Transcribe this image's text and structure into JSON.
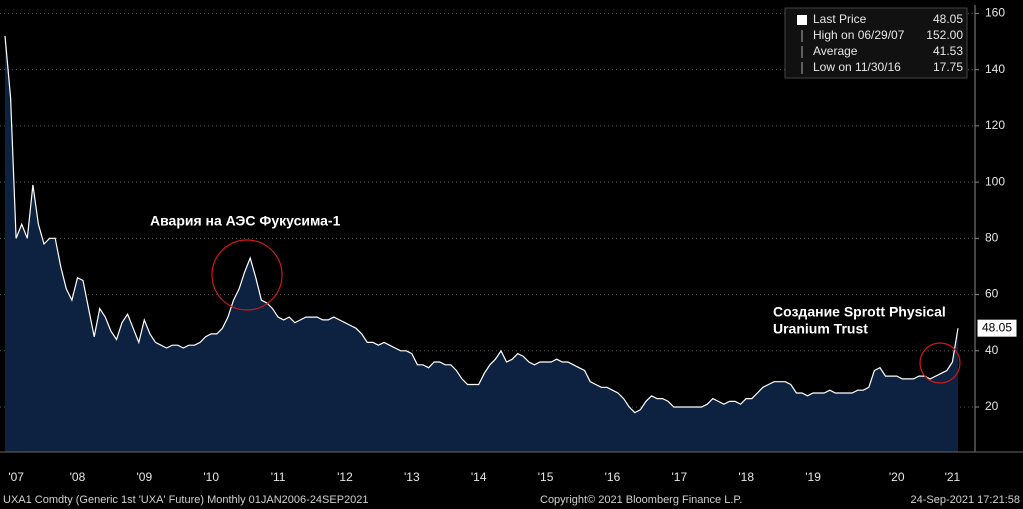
{
  "chart_data": {
    "type": "area",
    "series": [
      {
        "name": "Last Price",
        "color": "#ffffff",
        "fill": "#0d2240",
        "values": [
          152,
          130,
          80,
          85,
          80,
          99,
          85,
          78,
          80,
          80,
          70,
          62,
          58,
          66,
          65,
          55,
          45,
          55,
          52,
          47,
          44,
          50,
          53,
          48,
          43,
          51,
          46,
          43,
          42,
          41,
          42,
          42,
          41,
          42,
          42,
          43,
          45,
          46,
          46,
          48,
          52,
          58,
          62,
          68,
          73,
          66,
          58,
          57,
          55,
          52,
          51,
          52,
          50,
          51,
          52,
          52,
          52,
          51,
          51,
          52,
          51,
          50,
          49,
          48,
          46,
          43,
          43,
          42,
          43,
          42,
          41,
          40,
          40,
          39,
          35,
          35,
          34,
          36,
          36,
          35,
          35,
          33,
          30,
          28,
          28,
          28,
          32,
          35,
          37,
          40,
          36,
          37,
          39,
          38,
          36,
          35,
          36,
          36,
          36,
          37,
          36,
          36,
          35,
          34,
          33,
          29,
          28,
          27,
          27,
          26,
          25,
          23,
          20,
          18,
          19,
          22,
          24,
          23,
          23,
          22,
          20,
          20,
          20,
          20,
          20,
          20,
          21,
          23,
          22,
          21,
          22,
          22,
          21,
          23,
          23,
          25,
          27,
          28,
          29,
          29,
          29,
          28,
          25,
          25,
          24,
          25,
          25,
          25,
          26,
          25,
          25,
          25,
          25,
          26,
          26,
          27,
          33,
          34,
          31,
          31,
          31,
          30,
          30,
          30,
          31,
          31,
          30,
          31,
          32,
          33,
          36,
          48.05
        ]
      }
    ],
    "categories": [
      null,
      null,
      "'07",
      null,
      null,
      null,
      null,
      null,
      null,
      null,
      null,
      null,
      null,
      "'08",
      null,
      null,
      null,
      null,
      null,
      null,
      null,
      null,
      null,
      null,
      null,
      "'09",
      null,
      null,
      null,
      null,
      null,
      null,
      null,
      null,
      null,
      null,
      null,
      "'10",
      null,
      null,
      null,
      null,
      null,
      null,
      null,
      null,
      null,
      null,
      null,
      "'11",
      null,
      null,
      null,
      null,
      null,
      null,
      null,
      null,
      null,
      null,
      null,
      "'12",
      null,
      null,
      null,
      null,
      null,
      null,
      null,
      null,
      null,
      null,
      null,
      "'13",
      null,
      null,
      null,
      null,
      null,
      null,
      null,
      null,
      null,
      null,
      null,
      "'14",
      null,
      null,
      null,
      null,
      null,
      null,
      null,
      null,
      null,
      null,
      null,
      "'15",
      null,
      null,
      null,
      null,
      null,
      null,
      null,
      null,
      null,
      null,
      null,
      "'16",
      null,
      null,
      null,
      null,
      null,
      null,
      null,
      null,
      null,
      null,
      null,
      "'17",
      null,
      null,
      null,
      null,
      null,
      null,
      null,
      null,
      null,
      null,
      null,
      "'18",
      null,
      null,
      null,
      null,
      null,
      null,
      null,
      null,
      null,
      null,
      null,
      "'19",
      null,
      null,
      null,
      null,
      null,
      null,
      null,
      null,
      null,
      null,
      null,
      null,
      null,
      null,
      "'20",
      null,
      null,
      null,
      null,
      null,
      null,
      null,
      null,
      null,
      "'21",
      null
    ],
    "ylim": [
      4,
      163
    ],
    "yticks": [
      20,
      40,
      60,
      80,
      100,
      120,
      140,
      160
    ],
    "grid": true,
    "legend": [
      {
        "label": "Last Price",
        "value": 48.05
      },
      {
        "label": "High on 06/29/07",
        "value": 152,
        "value_label": "152.00"
      },
      {
        "label": "Average",
        "value": 41.53
      },
      {
        "label": "Low on 11/30/16",
        "value": 17.75
      }
    ],
    "annotations": [
      "Авария на АЭС Фукусима-1",
      "Создание Sprott Physical",
      "Uranium  Trust"
    ],
    "footer": [
      "UXA1 Comdty (Generic 1st 'UXA' Future)  Monthly 01JAN2006-24SEP2021",
      "Copyright© 2021 Bloomberg Finance L.P.",
      "24-Sep-2021 17:21:58"
    ]
  }
}
